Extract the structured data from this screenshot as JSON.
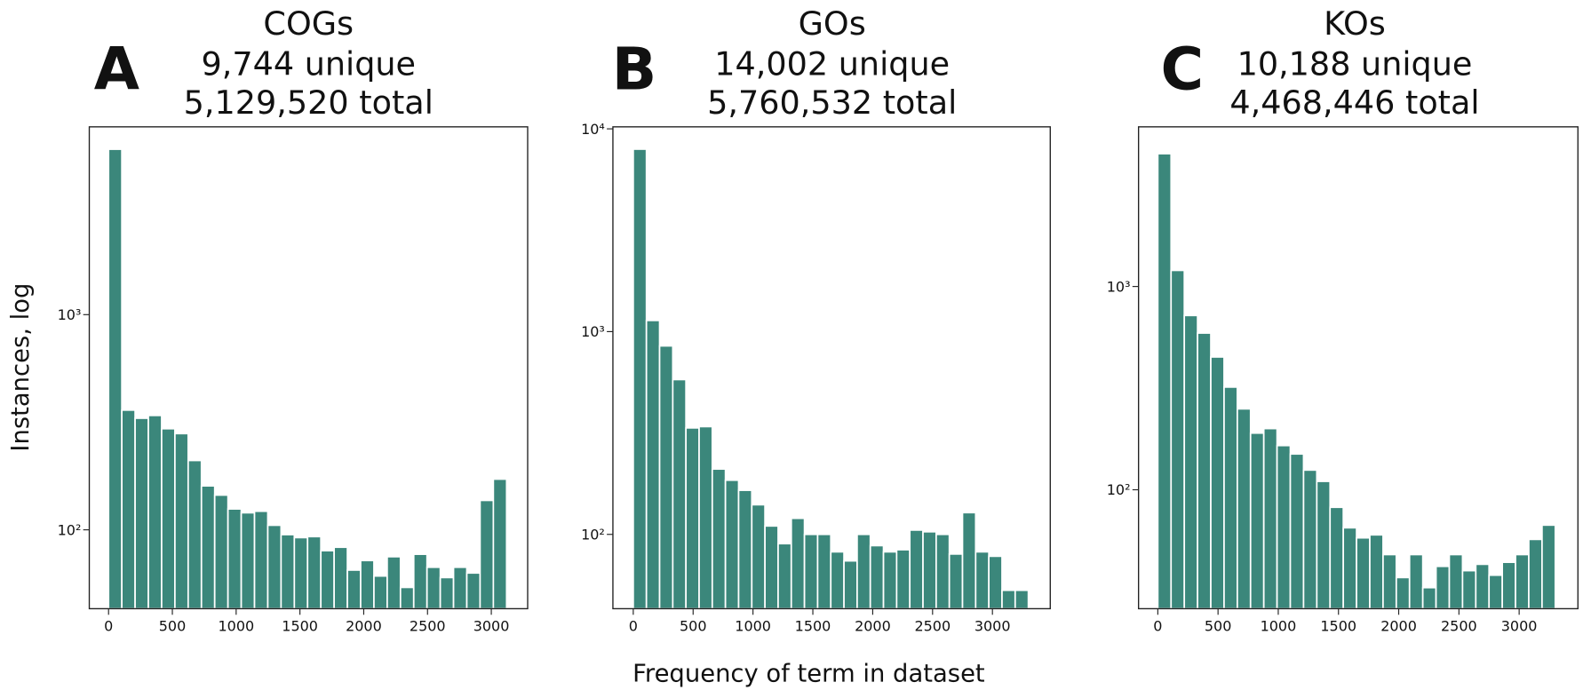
{
  "chart_data": [
    {
      "type": "histogram",
      "panel_label": "A",
      "title": "COGs",
      "subtitle": [
        "9,744 unique",
        "5,129,520 total"
      ],
      "ylabel": "Instances, log",
      "log_y": true,
      "color": "#3b877b",
      "bins": [
        0,
        104,
        208,
        312,
        416,
        520,
        624,
        728,
        832,
        936,
        1040,
        1144,
        1248,
        1352,
        1456,
        1560,
        1664,
        1768,
        1872,
        1976,
        2080,
        2184,
        2288,
        2392,
        2496,
        2600,
        2704,
        2808,
        2912,
        3016,
        3120
      ],
      "values": [
        5870,
        360,
        330,
        340,
        295,
        280,
        210,
        160,
        145,
        125,
        120,
        122,
        105,
        95,
        92,
        93,
        80,
        83,
        65,
        72,
        61,
        75,
        54,
        77,
        67,
        60,
        67,
        63,
        137,
        172
      ],
      "xlim": [
        -151,
        3285
      ],
      "ylim": [
        43,
        7460
      ],
      "xticks": [
        0,
        500,
        1000,
        1500,
        2000,
        2500,
        3000
      ],
      "yticks": [
        {
          "value": 100,
          "label": "10²"
        },
        {
          "value": 1000,
          "label": "10³"
        }
      ]
    },
    {
      "type": "histogram",
      "panel_label": "B",
      "title": "GOs",
      "subtitle": [
        "14,002 unique",
        "5,760,532 total"
      ],
      "log_y": true,
      "color": "#3b877b",
      "bins": [
        0,
        110,
        220,
        330,
        440,
        550,
        660,
        770,
        880,
        990,
        1100,
        1210,
        1320,
        1430,
        1540,
        1650,
        1760,
        1870,
        1980,
        2090,
        2200,
        2310,
        2420,
        2530,
        2640,
        2750,
        2860,
        2970,
        3080,
        3190,
        3300
      ],
      "values": [
        7940,
        1135,
        850,
        580,
        335,
        340,
        210,
        185,
        165,
        140,
        110,
        90,
        120,
        100,
        100,
        82,
        74,
        100,
        88,
        82,
        84,
        105,
        103,
        100,
        80,
        128,
        82,
        78,
        53,
        53
      ],
      "xlim": [
        -170,
        3483
      ],
      "ylim": [
        43,
        10230
      ],
      "xticks": [
        0,
        500,
        1000,
        1500,
        2000,
        2500,
        3000
      ],
      "yticks": [
        {
          "value": 100,
          "label": "10²"
        },
        {
          "value": 1000,
          "label": "10³"
        },
        {
          "value": 10000,
          "label": "10⁴"
        }
      ]
    },
    {
      "type": "histogram",
      "panel_label": "C",
      "title": "KOs",
      "subtitle": [
        "10,188 unique",
        "4,468,446 total"
      ],
      "log_y": true,
      "color": "#3b877b",
      "bins": [
        0,
        110,
        220,
        330,
        440,
        550,
        660,
        770,
        880,
        990,
        1100,
        1210,
        1320,
        1430,
        1540,
        1650,
        1760,
        1870,
        1980,
        2090,
        2200,
        2310,
        2420,
        2530,
        2640,
        2750,
        2860,
        2970,
        3080,
        3190,
        3300
      ],
      "values": [
        4500,
        1200,
        720,
        590,
        450,
        320,
        250,
        190,
        200,
        165,
        150,
        125,
        110,
        82,
        65,
        58,
        60,
        48,
        37,
        48,
        33,
        42,
        48,
        40,
        43,
        38,
        44,
        48,
        57,
        67
      ],
      "xlim": [
        -160,
        3488
      ],
      "ylim": [
        26,
        6100
      ],
      "xticks": [
        0,
        500,
        1000,
        1500,
        2000,
        2500,
        3000
      ],
      "yticks": [
        {
          "value": 100,
          "label": "10²"
        },
        {
          "value": 1000,
          "label": "10³"
        }
      ]
    }
  ],
  "xlabel": "Frequency of term in dataset"
}
